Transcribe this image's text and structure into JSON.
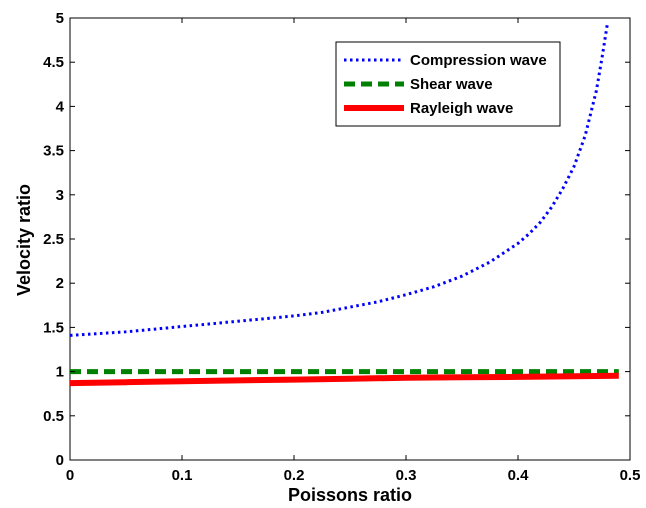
{
  "chart_data": {
    "type": "line",
    "title": "",
    "xlabel": "Poissons ratio",
    "ylabel": "Velocity ratio",
    "xlim": [
      0,
      0.5
    ],
    "ylim": [
      0,
      5
    ],
    "xticks": [
      "0",
      "0.1",
      "0.2",
      "0.3",
      "0.4",
      "0.5"
    ],
    "yticks": [
      "0",
      "0.5",
      "1",
      "1.5",
      "2",
      "2.5",
      "3",
      "3.5",
      "4",
      "4.5",
      "5"
    ],
    "grid": false,
    "legend_position": "top-right",
    "series": [
      {
        "name": "Compression wave",
        "color": "#0000ff",
        "style": "dotted",
        "x": [
          0,
          0.025,
          0.05,
          0.075,
          0.1,
          0.125,
          0.15,
          0.175,
          0.2,
          0.225,
          0.25,
          0.275,
          0.3,
          0.325,
          0.35,
          0.375,
          0.4,
          0.41,
          0.42,
          0.43,
          0.44,
          0.45,
          0.46,
          0.47,
          0.475,
          0.48
        ],
        "y": [
          1.41,
          1.43,
          1.45,
          1.48,
          1.51,
          1.54,
          1.57,
          1.6,
          1.63,
          1.67,
          1.73,
          1.79,
          1.87,
          1.96,
          2.08,
          2.24,
          2.45,
          2.56,
          2.69,
          2.86,
          3.07,
          3.32,
          3.67,
          4.18,
          4.55,
          4.95
        ]
      },
      {
        "name": "Shear wave",
        "color": "#008000",
        "style": "dashed",
        "x": [
          0,
          0.49
        ],
        "y": [
          1,
          1
        ]
      },
      {
        "name": "Rayleigh wave",
        "color": "#ff0000",
        "style": "solid",
        "x": [
          0,
          0.05,
          0.1,
          0.15,
          0.2,
          0.25,
          0.3,
          0.35,
          0.4,
          0.45,
          0.49
        ],
        "y": [
          0.87,
          0.88,
          0.89,
          0.9,
          0.91,
          0.92,
          0.93,
          0.935,
          0.94,
          0.948,
          0.953
        ]
      }
    ]
  }
}
